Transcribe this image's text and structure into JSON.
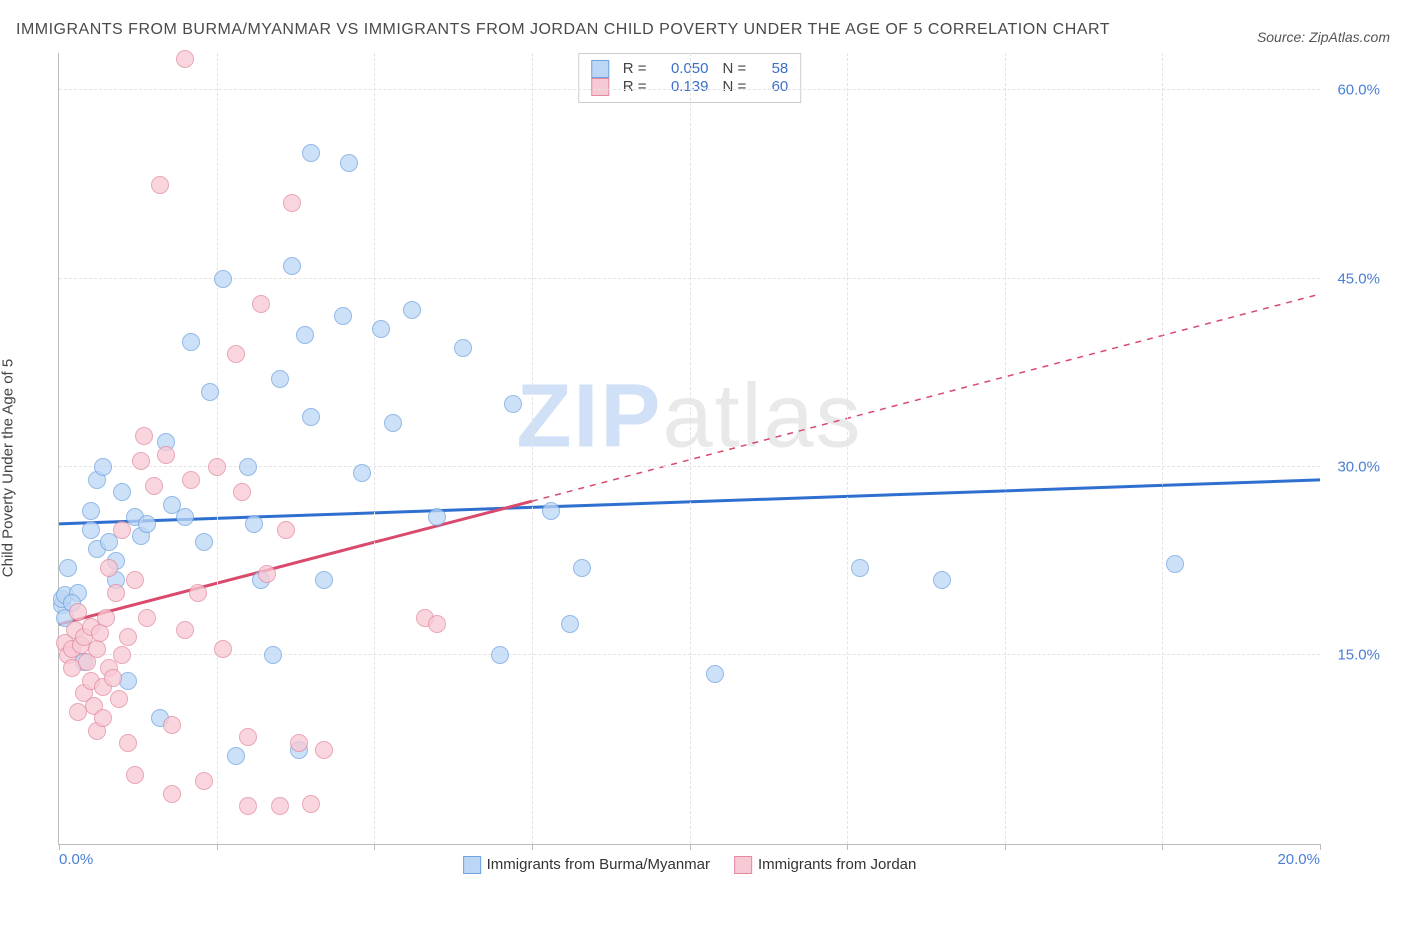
{
  "header": {
    "title": "IMMIGRANTS FROM BURMA/MYANMAR VS IMMIGRANTS FROM JORDAN CHILD POVERTY UNDER THE AGE OF 5 CORRELATION CHART",
    "source": "Source: ZipAtlas.com"
  },
  "axes": {
    "y_label": "Child Poverty Under the Age of 5",
    "x_min": 0.0,
    "x_max": 20.0,
    "y_min": 0.0,
    "y_max": 63.0,
    "y_ticks": [
      {
        "v": 15.0,
        "label": "15.0%"
      },
      {
        "v": 30.0,
        "label": "30.0%"
      },
      {
        "v": 45.0,
        "label": "45.0%"
      },
      {
        "v": 60.0,
        "label": "60.0%"
      }
    ],
    "x_ticks_labeled": [
      {
        "v": 0.0,
        "label": "0.0%"
      },
      {
        "v": 20.0,
        "label": "20.0%"
      }
    ],
    "x_ticks_unlabeled": [
      2.5,
      5.0,
      7.5,
      10.0,
      12.5,
      15.0,
      17.5
    ],
    "grid_color": "#e3e3e3",
    "axis_color": "#bbbbbb",
    "tick_label_color": "#4a7fd6"
  },
  "watermark": {
    "bold": "ZIP",
    "rest": "atlas"
  },
  "series": [
    {
      "id": "burma",
      "name": "Immigrants from Burma/Myanmar",
      "fill": "#bcd6f5",
      "stroke": "#6fa3e0",
      "marker_radius": 9,
      "marker_opacity": 0.75,
      "R": "0.050",
      "N": "58",
      "trend": {
        "x1": 0.0,
        "y1": 25.5,
        "x2": 20.0,
        "y2": 29.0,
        "color": "#2f6fd0",
        "width": 3,
        "dash_after_x": 20.5
      },
      "points": [
        [
          0.05,
          19.0
        ],
        [
          0.05,
          19.5
        ],
        [
          0.1,
          19.8
        ],
        [
          0.1,
          18.0
        ],
        [
          0.15,
          22.0
        ],
        [
          0.3,
          20.0
        ],
        [
          0.4,
          14.5
        ],
        [
          0.5,
          25.0
        ],
        [
          0.5,
          26.5
        ],
        [
          0.6,
          23.5
        ],
        [
          0.6,
          29.0
        ],
        [
          0.7,
          30.0
        ],
        [
          0.8,
          24.0
        ],
        [
          0.9,
          21.0
        ],
        [
          0.9,
          22.5
        ],
        [
          1.0,
          28.0
        ],
        [
          1.1,
          13.0
        ],
        [
          1.2,
          26.0
        ],
        [
          1.3,
          24.5
        ],
        [
          1.4,
          25.5
        ],
        [
          1.6,
          10.0
        ],
        [
          1.7,
          32.0
        ],
        [
          1.8,
          27.0
        ],
        [
          2.0,
          26.0
        ],
        [
          2.1,
          40.0
        ],
        [
          2.3,
          24.0
        ],
        [
          2.4,
          36.0
        ],
        [
          2.6,
          45.0
        ],
        [
          2.8,
          7.0
        ],
        [
          3.0,
          30.0
        ],
        [
          3.1,
          25.5
        ],
        [
          3.2,
          21.0
        ],
        [
          3.4,
          15.0
        ],
        [
          3.5,
          37.0
        ],
        [
          3.7,
          46.0
        ],
        [
          3.8,
          7.5
        ],
        [
          3.9,
          40.5
        ],
        [
          4.0,
          34.0
        ],
        [
          4.0,
          55.0
        ],
        [
          4.2,
          21.0
        ],
        [
          4.5,
          42.0
        ],
        [
          4.6,
          54.2
        ],
        [
          4.8,
          29.5
        ],
        [
          5.1,
          41.0
        ],
        [
          5.3,
          33.5
        ],
        [
          5.6,
          42.5
        ],
        [
          6.0,
          26.0
        ],
        [
          6.4,
          39.5
        ],
        [
          7.0,
          15.0
        ],
        [
          7.2,
          35.0
        ],
        [
          7.8,
          26.5
        ],
        [
          8.1,
          17.5
        ],
        [
          8.3,
          22.0
        ],
        [
          10.4,
          13.5
        ],
        [
          12.7,
          22.0
        ],
        [
          14.0,
          21.0
        ],
        [
          17.7,
          22.3
        ],
        [
          0.2,
          19.2
        ]
      ]
    },
    {
      "id": "jordan",
      "name": "Immigrants from Jordan",
      "fill": "#f7c9d4",
      "stroke": "#e48aa0",
      "marker_radius": 9,
      "marker_opacity": 0.75,
      "R": "0.139",
      "N": "60",
      "trend": {
        "x1": 0.0,
        "y1": 17.5,
        "x2": 7.5,
        "y2": 27.3,
        "extend_x": 20.0,
        "extend_y": 43.8,
        "color": "#d94a6c",
        "width": 3
      },
      "points": [
        [
          0.1,
          16.0
        ],
        [
          0.15,
          15.0
        ],
        [
          0.2,
          14.0
        ],
        [
          0.2,
          15.5
        ],
        [
          0.25,
          17.0
        ],
        [
          0.3,
          18.5
        ],
        [
          0.3,
          10.5
        ],
        [
          0.35,
          15.8
        ],
        [
          0.4,
          12.0
        ],
        [
          0.4,
          16.5
        ],
        [
          0.45,
          14.5
        ],
        [
          0.5,
          13.0
        ],
        [
          0.5,
          17.3
        ],
        [
          0.55,
          11.0
        ],
        [
          0.6,
          15.5
        ],
        [
          0.6,
          9.0
        ],
        [
          0.65,
          16.8
        ],
        [
          0.7,
          12.5
        ],
        [
          0.7,
          10.0
        ],
        [
          0.75,
          18.0
        ],
        [
          0.8,
          14.0
        ],
        [
          0.8,
          22.0
        ],
        [
          0.85,
          13.2
        ],
        [
          0.9,
          20.0
        ],
        [
          0.95,
          11.5
        ],
        [
          1.0,
          15.0
        ],
        [
          1.0,
          25.0
        ],
        [
          1.1,
          16.5
        ],
        [
          1.1,
          8.0
        ],
        [
          1.2,
          21.0
        ],
        [
          1.2,
          5.5
        ],
        [
          1.3,
          30.5
        ],
        [
          1.35,
          32.5
        ],
        [
          1.4,
          18.0
        ],
        [
          1.5,
          28.5
        ],
        [
          1.6,
          52.5
        ],
        [
          1.7,
          31.0
        ],
        [
          1.8,
          9.5
        ],
        [
          1.8,
          4.0
        ],
        [
          2.0,
          17.0
        ],
        [
          2.0,
          62.5
        ],
        [
          2.1,
          29.0
        ],
        [
          2.2,
          20.0
        ],
        [
          2.3,
          5.0
        ],
        [
          2.5,
          30.0
        ],
        [
          2.6,
          15.5
        ],
        [
          2.8,
          39.0
        ],
        [
          2.9,
          28.0
        ],
        [
          3.0,
          8.5
        ],
        [
          3.0,
          3.0
        ],
        [
          3.2,
          43.0
        ],
        [
          3.3,
          21.5
        ],
        [
          3.5,
          3.0
        ],
        [
          3.6,
          25.0
        ],
        [
          3.7,
          51.0
        ],
        [
          3.8,
          8.0
        ],
        [
          4.0,
          3.2
        ],
        [
          4.2,
          7.5
        ],
        [
          5.8,
          18.0
        ],
        [
          6.0,
          17.5
        ]
      ]
    }
  ],
  "legend_box": {
    "R_label": "R =",
    "N_label": "N ="
  }
}
